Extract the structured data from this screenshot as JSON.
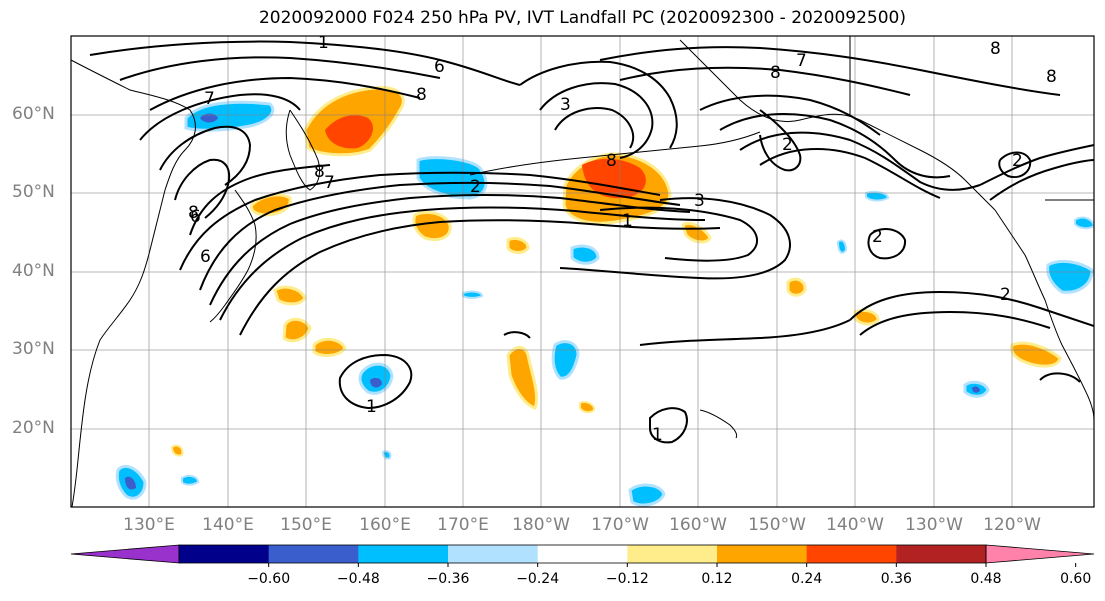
{
  "title": "2020092000 F024 250 hPa PV, IVT Landfall PC (2020092300 - 2020092500)",
  "lat_labels": [
    "60°N",
    "50°N",
    "40°N",
    "30°N",
    "20°N"
  ],
  "lon_labels": [
    "130°E",
    "140°E",
    "150°E",
    "160°E",
    "170°E",
    "180°W",
    "170°W",
    "160°W",
    "150°W",
    "140°W",
    "130°W",
    "120°W"
  ],
  "contour_labels": [
    "1",
    "6",
    "7",
    "8",
    "8",
    "8",
    "3",
    "2",
    "8",
    "7",
    "6",
    "6",
    "8",
    "7",
    "2",
    "8",
    "2",
    "1",
    "3",
    "1",
    "8",
    "2",
    "2",
    "1"
  ],
  "colorbar": {
    "colors": [
      "#9932CC",
      "#00008B",
      "#3A5FCD",
      "#00BFFF",
      "#B0E2FF",
      "#FFFFFF",
      "#FFEC8B",
      "#FFA500",
      "#FF4500",
      "#B22222",
      "#FF82AB"
    ],
    "tick_labels": [
      "−0.60",
      "−0.48",
      "−0.36",
      "−0.24",
      "−0.12",
      "0.12",
      "0.24",
      "0.36",
      "0.48",
      "0.60"
    ]
  },
  "colors": {
    "positive_strong": "#FF4500",
    "positive": "#FFA500",
    "positive_weak": "#FFEC8B",
    "negative": "#00BFFF",
    "negative_weak": "#B0E2FF",
    "negative_strong": "#3A5FCD",
    "contour": "#000000",
    "grid": "#808080"
  }
}
